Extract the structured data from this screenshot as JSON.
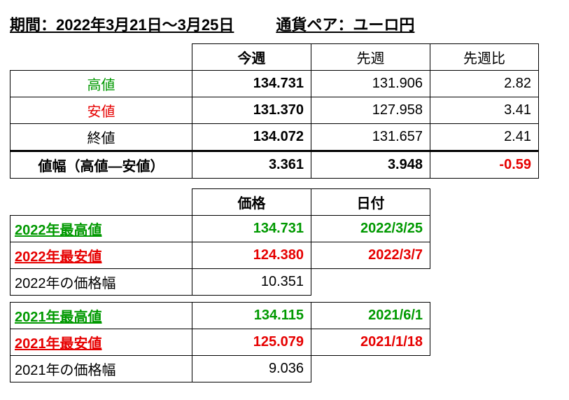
{
  "header": {
    "period": "期間：2022年3月21日～3月25日",
    "pair": "通貨ペア：ユーロ円"
  },
  "weekly": {
    "headers": {
      "thisweek": "今週",
      "lastweek": "先週",
      "diff": "先週比"
    },
    "rows": {
      "high": {
        "label": "高値",
        "label_color": "#009900",
        "thisweek": "134.731",
        "lastweek": "131.906",
        "diff": "2.82"
      },
      "low": {
        "label": "安値",
        "label_color": "#e60000",
        "thisweek": "131.370",
        "lastweek": "127.958",
        "diff": "3.41"
      },
      "close": {
        "label": "終値",
        "label_color": "#000000",
        "thisweek": "134.072",
        "lastweek": "131.657",
        "diff": "2.41"
      },
      "range": {
        "label": "値幅（高値―安値）",
        "thisweek": "3.361",
        "lastweek": "3.948",
        "diff": "-0.59",
        "diff_color": "#e60000"
      }
    }
  },
  "yearly": {
    "headers": {
      "price": "価格",
      "date": "日付"
    },
    "y2022": {
      "high": {
        "label": "2022年最高値",
        "price": "134.731",
        "date": "2022/3/25",
        "color": "#009900"
      },
      "low": {
        "label": "2022年最安値",
        "price": "124.380",
        "date": "2022/3/7",
        "color": "#e60000"
      },
      "range": {
        "label": "2022年の価格幅",
        "price": "10.351"
      }
    },
    "y2021": {
      "high": {
        "label": "2021年最高値",
        "price": "134.115",
        "date": "2021/6/1",
        "color": "#009900"
      },
      "low": {
        "label": "2021年最安値",
        "price": "125.079",
        "date": "2021/1/18",
        "color": "#e60000"
      },
      "range": {
        "label": "2021年の価格幅",
        "price": "9.036"
      }
    }
  }
}
